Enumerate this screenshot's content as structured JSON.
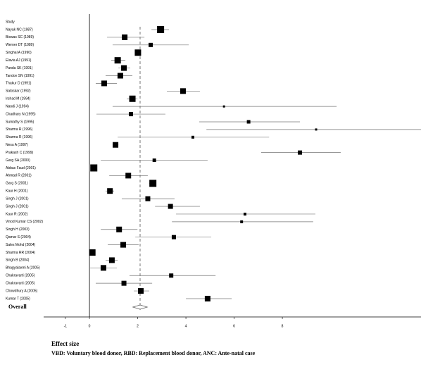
{
  "chart_data": {
    "type": "forest",
    "header": "Study",
    "studies": [
      "Nayak NC (1987)",
      "Biswas SC (1989)",
      "Werner DT (1989)",
      "Singhal A (1990)",
      "Elavia AJ (1991)",
      "Panda SK (1991)",
      "Tandon SN (1991)",
      "Thakur D (1991)",
      "Satoskar (1992)",
      "Irshad M (1994)",
      "Nandi J (1994)",
      "Chadhary N (1995)",
      "Sumathy S (1995)",
      "Sharma R (1996)",
      "Sharma R (1996)",
      "Nesu A (1997)",
      "Prakash C (1999)",
      "Garg SA (2000)",
      "Abbas Faud (2001)",
      "Ahmad R (2001)",
      "Garg S (2001)",
      "Kaur H (2001)",
      "Singh J (2001)",
      "Singh J (2001)",
      "Kaur R (2002)",
      "Vinod Kumar CS (2002)",
      "Singh H (2003)",
      "Qamar S (2004)",
      "Sales Mohd (2004)",
      "Sharma RR (2004)",
      "Singh B (2004)",
      "Bhagyalaxmi A (2005)",
      "Chakravarti (2005)",
      "Chakravarti (2005)",
      "Chowdhury A (2005)",
      "Kumar T (2005)"
    ],
    "estimates": [
      2.95,
      1.46,
      2.54,
      2.01,
      1.17,
      1.43,
      1.28,
      0.61,
      3.88,
      1.78,
      5.58,
      1.72,
      6.6,
      9.4,
      4.29,
      1.08,
      8.73,
      2.69,
      0.18,
      1.61,
      2.63,
      0.85,
      2.42,
      3.36,
      6.45,
      6.31,
      1.23,
      3.5,
      1.4,
      0.12,
      0.93,
      0.58,
      3.39,
      1.43,
      2.13,
      4.9
    ],
    "lower": [
      2.57,
      0.73,
      0.96,
      1.9,
      0.9,
      1.2,
      0.67,
      0.26,
      3.21,
      1.55,
      0.96,
      0.29,
      4.55,
      4.85,
      1.17,
      0.96,
      7.12,
      0.47,
      0.03,
      0.82,
      2.48,
      0.67,
      1.34,
      2.72,
      3.59,
      3.42,
      0.47,
      1.9,
      0.76,
      0.0,
      0.67,
      0.03,
      1.66,
      0.26,
      1.84,
      4.0
    ],
    "upper": [
      3.3,
      2.28,
      4.12,
      2.13,
      1.49,
      1.69,
      1.78,
      1.14,
      4.58,
      1.99,
      10.25,
      3.15,
      8.73,
      13.75,
      7.45,
      1.2,
      10.42,
      4.9,
      0.32,
      2.42,
      2.77,
      1.02,
      3.53,
      4.58,
      9.37,
      9.28,
      1.99,
      5.05,
      2.04,
      0.23,
      1.17,
      1.14,
      5.23,
      2.6,
      2.48,
      5.9
    ],
    "weights": [
      10,
      8,
      6,
      9,
      9,
      8,
      8,
      8,
      8,
      9,
      3,
      6,
      5,
      3,
      4,
      8,
      6,
      5,
      10,
      8,
      10,
      8,
      7,
      7,
      4,
      4,
      8,
      6,
      8,
      9,
      8,
      8,
      6,
      7,
      8,
      8
    ],
    "overall": {
      "label": "Overall",
      "value": 2.1,
      "lower": 1.8,
      "upper": 2.4
    },
    "xlim": [
      -1.9,
      13.75
    ],
    "xticks": [
      -1,
      0,
      2,
      4,
      6,
      8
    ],
    "xlabel": "Effect size",
    "note": "VBD: Voluntary blood donor, RBD: Replacement blood donor, ANC: Ante-natal case"
  }
}
